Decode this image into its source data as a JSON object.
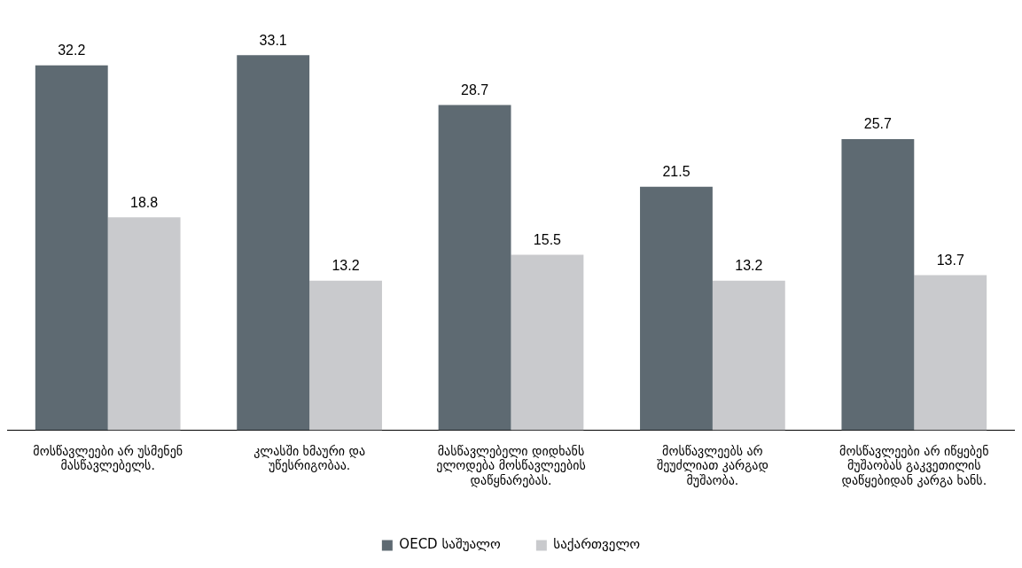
{
  "chart_data": {
    "type": "bar",
    "categories": [
      "მოსწავლეები არ უსმენენ მასწავლებელს.",
      "კლასში ხმაური და უწესრიგობაა.",
      "მასწავლებელი დიდხანს ელოდება მოსწავლეების დაწყნარებას.",
      "მოსწავლეებს არ შეუძლიათ კარგად მუშაობა.",
      "მოსწავლეები არ იწყებენ მუშაობას გაკვეთილის დაწყებიდან კარგა ხანს."
    ],
    "series": [
      {
        "name": "OECD საშუალო",
        "color": "#5e6a72",
        "values": [
          32.2,
          33.1,
          28.7,
          21.5,
          25.7
        ]
      },
      {
        "name": "საქართველო",
        "color": "#c9cacd",
        "values": [
          18.8,
          13.2,
          15.5,
          13.2,
          13.7
        ]
      }
    ],
    "data_labels": true,
    "grid": false,
    "legend": "bottom"
  }
}
